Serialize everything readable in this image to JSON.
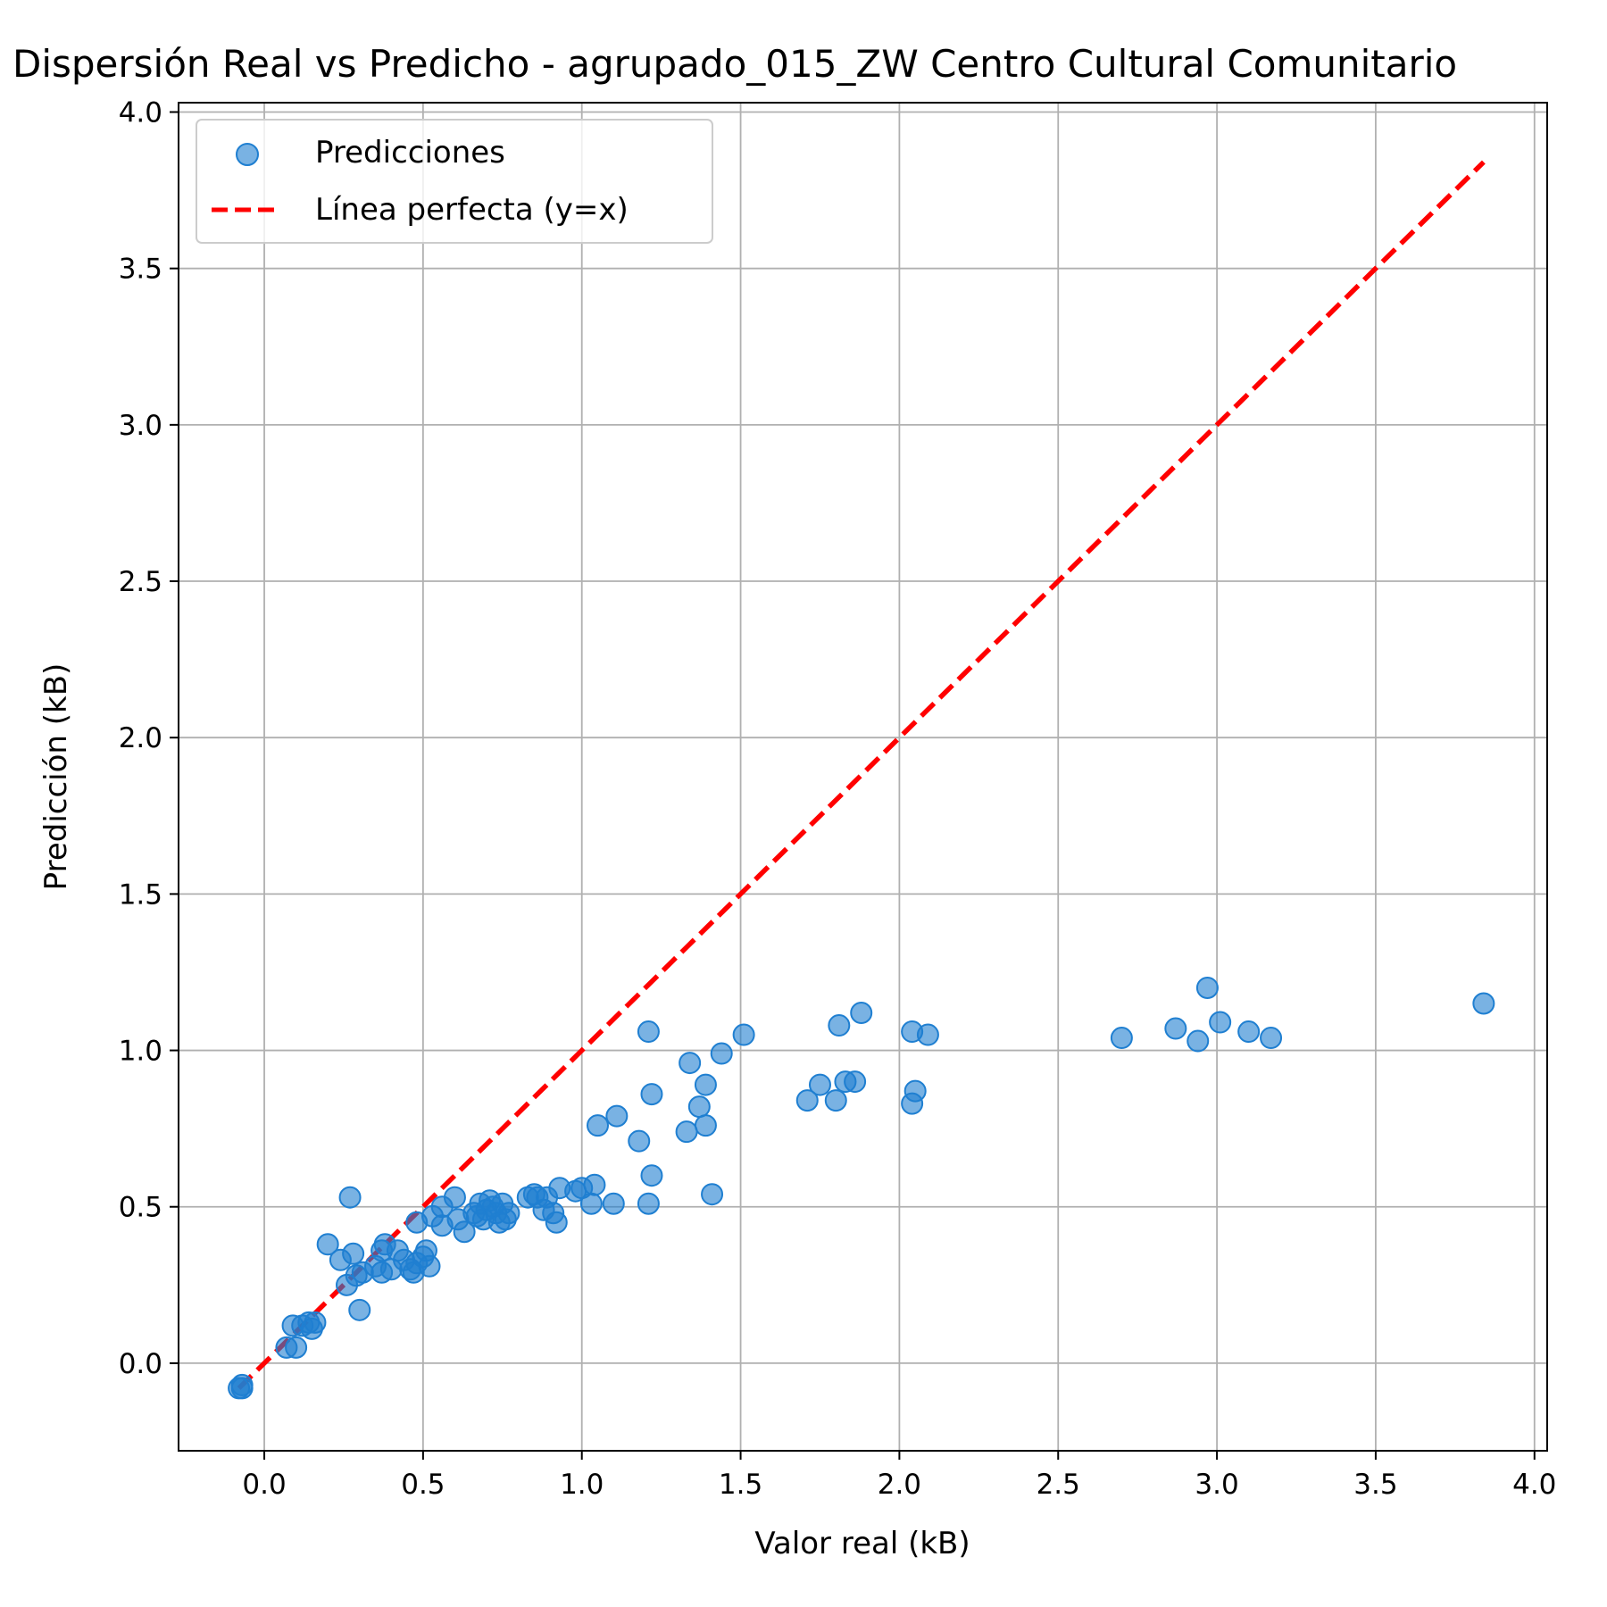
{
  "chart_data": {
    "type": "scatter",
    "title": "Dispersión Real vs Predicho - agrupado_015_ZW Centro Cultural Comunitario",
    "xlabel": "Valor real (kB)",
    "ylabel": "Predicción (kB)",
    "xlim": [
      -0.27,
      4.04
    ],
    "ylim": [
      -0.28,
      4.03
    ],
    "xticks": [
      0.0,
      0.5,
      1.0,
      1.5,
      2.0,
      2.5,
      3.0,
      3.5,
      4.0
    ],
    "yticks": [
      0.0,
      0.5,
      1.0,
      1.5,
      2.0,
      2.5,
      3.0,
      3.5,
      4.0
    ],
    "tick_labels_x": [
      "0.0",
      "0.5",
      "1.0",
      "1.5",
      "2.0",
      "2.5",
      "3.0",
      "3.5",
      "4.0"
    ],
    "tick_labels_y": [
      "0.0",
      "0.5",
      "1.0",
      "1.5",
      "2.0",
      "2.5",
      "3.0",
      "3.5",
      "4.0"
    ],
    "grid": true,
    "legend_position": "top-left",
    "series": [
      {
        "name": "Predicciones",
        "kind": "scatter",
        "color": "#1f7fd1",
        "points": [
          [
            -0.07,
            -0.08
          ],
          [
            -0.08,
            -0.08
          ],
          [
            -0.07,
            -0.07
          ],
          [
            0.07,
            0.05
          ],
          [
            0.1,
            0.05
          ],
          [
            0.09,
            0.12
          ],
          [
            0.12,
            0.12
          ],
          [
            0.14,
            0.13
          ],
          [
            0.15,
            0.11
          ],
          [
            0.16,
            0.13
          ],
          [
            0.2,
            0.38
          ],
          [
            0.24,
            0.33
          ],
          [
            0.26,
            0.25
          ],
          [
            0.27,
            0.53
          ],
          [
            0.28,
            0.35
          ],
          [
            0.29,
            0.28
          ],
          [
            0.3,
            0.17
          ],
          [
            0.31,
            0.29
          ],
          [
            0.35,
            0.31
          ],
          [
            0.37,
            0.29
          ],
          [
            0.37,
            0.36
          ],
          [
            0.38,
            0.38
          ],
          [
            0.4,
            0.3
          ],
          [
            0.42,
            0.36
          ],
          [
            0.44,
            0.33
          ],
          [
            0.46,
            0.3
          ],
          [
            0.47,
            0.29
          ],
          [
            0.48,
            0.45
          ],
          [
            0.48,
            0.32
          ],
          [
            0.5,
            0.34
          ],
          [
            0.51,
            0.36
          ],
          [
            0.52,
            0.31
          ],
          [
            0.53,
            0.47
          ],
          [
            0.56,
            0.5
          ],
          [
            0.56,
            0.44
          ],
          [
            0.6,
            0.53
          ],
          [
            0.61,
            0.46
          ],
          [
            0.63,
            0.42
          ],
          [
            0.66,
            0.48
          ],
          [
            0.67,
            0.47
          ],
          [
            0.68,
            0.51
          ],
          [
            0.69,
            0.46
          ],
          [
            0.7,
            0.49
          ],
          [
            0.71,
            0.52
          ],
          [
            0.72,
            0.5
          ],
          [
            0.73,
            0.48
          ],
          [
            0.74,
            0.45
          ],
          [
            0.75,
            0.51
          ],
          [
            0.76,
            0.46
          ],
          [
            0.77,
            0.48
          ],
          [
            0.83,
            0.53
          ],
          [
            0.85,
            0.54
          ],
          [
            0.86,
            0.53
          ],
          [
            0.88,
            0.49
          ],
          [
            0.89,
            0.53
          ],
          [
            0.91,
            0.48
          ],
          [
            0.92,
            0.45
          ],
          [
            0.93,
            0.56
          ],
          [
            0.98,
            0.55
          ],
          [
            1.0,
            0.56
          ],
          [
            1.03,
            0.51
          ],
          [
            1.04,
            0.57
          ],
          [
            1.05,
            0.76
          ],
          [
            1.1,
            0.51
          ],
          [
            1.11,
            0.79
          ],
          [
            1.18,
            0.71
          ],
          [
            1.21,
            0.51
          ],
          [
            1.21,
            1.06
          ],
          [
            1.22,
            0.6
          ],
          [
            1.22,
            0.86
          ],
          [
            1.33,
            0.74
          ],
          [
            1.34,
            0.96
          ],
          [
            1.37,
            0.82
          ],
          [
            1.39,
            0.76
          ],
          [
            1.39,
            0.89
          ],
          [
            1.41,
            0.54
          ],
          [
            1.44,
            0.99
          ],
          [
            1.51,
            1.05
          ],
          [
            1.71,
            0.84
          ],
          [
            1.75,
            0.89
          ],
          [
            1.8,
            0.84
          ],
          [
            1.81,
            1.08
          ],
          [
            1.83,
            0.9
          ],
          [
            1.86,
            0.9
          ],
          [
            1.88,
            1.12
          ],
          [
            2.04,
            0.83
          ],
          [
            2.04,
            1.06
          ],
          [
            2.05,
            0.87
          ],
          [
            2.09,
            1.05
          ],
          [
            2.7,
            1.04
          ],
          [
            2.87,
            1.07
          ],
          [
            2.94,
            1.03
          ],
          [
            2.97,
            1.2
          ],
          [
            3.01,
            1.09
          ],
          [
            3.1,
            1.06
          ],
          [
            3.17,
            1.04
          ],
          [
            3.84,
            1.15
          ]
        ]
      },
      {
        "name": "Línea perfecta (y=x)",
        "kind": "line",
        "color": "#ff0000",
        "x": [
          -0.08,
          3.84
        ],
        "y": [
          -0.08,
          3.84
        ]
      }
    ]
  }
}
